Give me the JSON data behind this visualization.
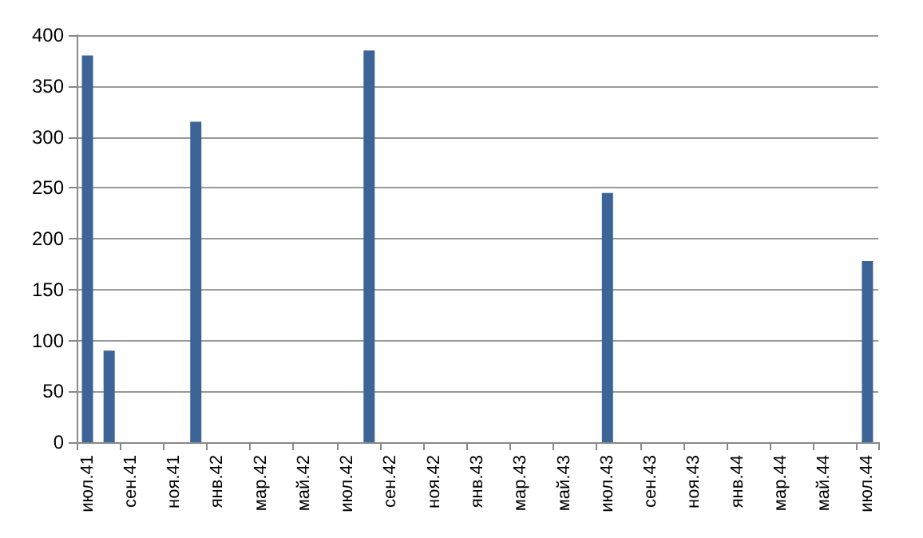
{
  "chart_data": {
    "type": "bar",
    "categories": [
      "июл.41",
      null,
      "сен.41",
      null,
      "ноя.41",
      null,
      "янв.42",
      null,
      "мар.42",
      null,
      "май.42",
      null,
      "июл.42",
      null,
      "сен.42",
      null,
      "ноя.42",
      null,
      "янв.43",
      null,
      "мар.43",
      null,
      "май.43",
      null,
      "июл.43",
      null,
      "сен.43",
      null,
      "ноя.43",
      null,
      "янв.44",
      null,
      "мар.44",
      null,
      "май.44",
      null,
      "июл.44"
    ],
    "values": [
      380,
      90,
      null,
      null,
      null,
      315,
      null,
      null,
      null,
      null,
      null,
      null,
      null,
      385,
      null,
      null,
      null,
      null,
      null,
      null,
      null,
      null,
      null,
      null,
      245,
      null,
      null,
      null,
      null,
      null,
      null,
      null,
      null,
      null,
      null,
      null,
      178
    ],
    "color": "#3d6496",
    "ylim": [
      0,
      400
    ],
    "yticks": [
      0,
      50,
      100,
      150,
      200,
      250,
      300,
      350,
      400
    ],
    "grid": "y"
  }
}
